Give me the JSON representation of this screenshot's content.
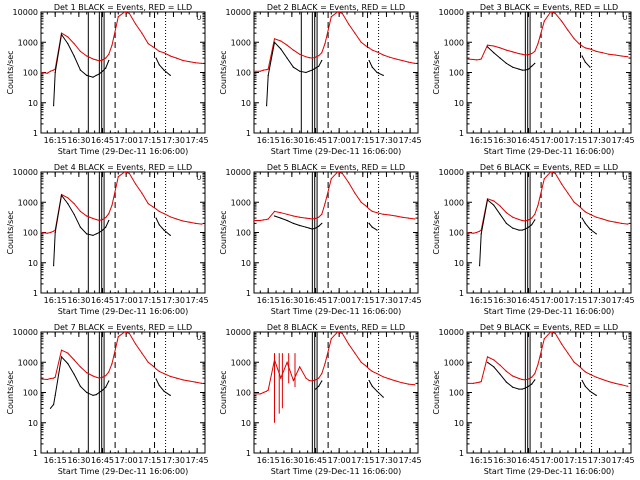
{
  "chart_data": {
    "type": "line",
    "layout": "3x3 grid of log-scale time series panels",
    "title_template": "Det {n} BLACK = Events, RED = LLD",
    "legend": {
      "black": "Events",
      "red": "LLD"
    },
    "ylabel": "Counts/sec",
    "ylim": [
      1,
      10000
    ],
    "yscale": "log",
    "y_ticks": [
      "1",
      "10",
      "100",
      "1000",
      "10000"
    ],
    "xlabel": "Start Time (29-Dec-11 16:06:00)",
    "x_unit": "minutes after 16:06:00",
    "xlim": [
      0,
      104
    ],
    "x_ticks": [
      {
        "t": 9,
        "label": "16:15"
      },
      {
        "t": 24,
        "label": "16:30"
      },
      {
        "t": 39,
        "label": "16:45"
      },
      {
        "t": 54,
        "label": "17:00"
      },
      {
        "t": 69,
        "label": "17:15"
      },
      {
        "t": 84,
        "label": "17:30"
      },
      {
        "t": 99,
        "label": "17:45"
      }
    ],
    "panel_corner_marker": "∪",
    "series_points_t": [
      0,
      4,
      6,
      8,
      9,
      13,
      17,
      21,
      25,
      29,
      33,
      35,
      37,
      39,
      41,
      43,
      45,
      49,
      53,
      56,
      60,
      64,
      68,
      71,
      73,
      75,
      78,
      82,
      86,
      90,
      94,
      98,
      102
    ],
    "panels": [
      {
        "det": "1",
        "verticals": [
          {
            "t": 30,
            "style": "solid"
          },
          {
            "t": 37,
            "style": "solid"
          },
          {
            "t": 38.5,
            "style": "solid"
          },
          {
            "t": 40,
            "style": "solid"
          },
          {
            "t": 47,
            "style": "dashed"
          },
          {
            "t": 72,
            "style": "dashed"
          },
          {
            "t": 79,
            "style": "dotted"
          }
        ],
        "black": [
          null,
          null,
          null,
          8,
          100,
          1800,
          900,
          350,
          120,
          80,
          70,
          80,
          90,
          110,
          140,
          250,
          null,
          null,
          null,
          null,
          null,
          null,
          null,
          null,
          300,
          180,
          120,
          80,
          null,
          null,
          null,
          null,
          null
        ],
        "red": [
          100,
          95,
          110,
          120,
          130,
          2000,
          1500,
          900,
          500,
          350,
          280,
          260,
          240,
          260,
          300,
          400,
          800,
          7000,
          10000,
          9000,
          4000,
          2000,
          900,
          700,
          600,
          500,
          450,
          350,
          300,
          250,
          230,
          210,
          200
        ]
      },
      {
        "det": "2",
        "verticals": [
          {
            "t": 30,
            "style": "solid"
          },
          {
            "t": 37,
            "style": "solid"
          },
          {
            "t": 38.5,
            "style": "solid"
          },
          {
            "t": 40,
            "style": "solid"
          },
          {
            "t": 47,
            "style": "dashed"
          },
          {
            "t": 72,
            "style": "dashed"
          },
          {
            "t": 79,
            "style": "dotted"
          }
        ],
        "black": [
          null,
          null,
          null,
          8,
          80,
          1000,
          600,
          300,
          150,
          110,
          100,
          110,
          120,
          140,
          160,
          250,
          null,
          null,
          null,
          null,
          null,
          null,
          null,
          null,
          250,
          150,
          100,
          80,
          null,
          null,
          null,
          null,
          null
        ],
        "red": [
          110,
          110,
          120,
          125,
          130,
          1300,
          1100,
          800,
          550,
          400,
          330,
          310,
          300,
          320,
          360,
          450,
          900,
          7000,
          10000,
          9000,
          4000,
          2000,
          1000,
          750,
          650,
          550,
          480,
          380,
          320,
          280,
          250,
          220,
          200
        ]
      },
      {
        "det": "3",
        "verticals": [
          {
            "t": 37,
            "style": "solid"
          },
          {
            "t": 38.5,
            "style": "solid"
          },
          {
            "t": 40,
            "style": "solid"
          },
          {
            "t": 47,
            "style": "dashed"
          },
          {
            "t": 72,
            "style": "dashed"
          },
          {
            "t": 79,
            "style": "dotted"
          }
        ],
        "black": [
          null,
          null,
          null,
          null,
          null,
          700,
          450,
          300,
          200,
          150,
          130,
          120,
          120,
          130,
          160,
          200,
          null,
          null,
          null,
          null,
          null,
          null,
          null,
          null,
          350,
          220,
          150,
          null,
          null,
          null,
          null,
          null,
          null
        ],
        "red": [
          280,
          270,
          260,
          270,
          280,
          800,
          750,
          650,
          550,
          480,
          420,
          400,
          380,
          390,
          420,
          500,
          900,
          5000,
          10000,
          9000,
          5000,
          2500,
          1300,
          900,
          750,
          650,
          600,
          500,
          450,
          400,
          380,
          350,
          330
        ]
      },
      {
        "det": "4",
        "verticals": [
          {
            "t": 30,
            "style": "solid"
          },
          {
            "t": 37,
            "style": "solid"
          },
          {
            "t": 38.5,
            "style": "solid"
          },
          {
            "t": 40,
            "style": "solid"
          },
          {
            "t": 47,
            "style": "dashed"
          },
          {
            "t": 72,
            "style": "dashed"
          },
          {
            "t": 79,
            "style": "dotted"
          }
        ],
        "black": [
          null,
          null,
          null,
          8,
          100,
          1700,
          900,
          400,
          150,
          90,
          80,
          90,
          100,
          120,
          150,
          250,
          null,
          null,
          null,
          null,
          null,
          null,
          null,
          null,
          300,
          180,
          120,
          80,
          null,
          null,
          null,
          null,
          null
        ],
        "red": [
          100,
          95,
          100,
          110,
          120,
          1800,
          1400,
          900,
          500,
          350,
          290,
          270,
          250,
          270,
          310,
          420,
          800,
          7000,
          10000,
          9000,
          4000,
          2000,
          900,
          700,
          600,
          500,
          420,
          330,
          280,
          240,
          220,
          200,
          190
        ]
      },
      {
        "det": "5",
        "verticals": [
          {
            "t": 37,
            "style": "solid"
          },
          {
            "t": 38.5,
            "style": "solid"
          },
          {
            "t": 40,
            "style": "solid"
          },
          {
            "t": 47,
            "style": "dashed"
          },
          {
            "t": 72,
            "style": "dashed"
          },
          {
            "t": 79,
            "style": "dotted"
          }
        ],
        "black": [
          null,
          null,
          null,
          null,
          null,
          350,
          300,
          250,
          200,
          170,
          150,
          140,
          130,
          140,
          160,
          200,
          null,
          null,
          null,
          null,
          null,
          null,
          null,
          null,
          200,
          150,
          120,
          null,
          null,
          null,
          null,
          null,
          null
        ],
        "red": [
          250,
          250,
          260,
          270,
          280,
          500,
          450,
          400,
          350,
          320,
          300,
          290,
          280,
          290,
          320,
          400,
          900,
          6000,
          10000,
          9000,
          4500,
          2000,
          1000,
          750,
          600,
          500,
          450,
          400,
          380,
          350,
          320,
          300,
          280
        ]
      },
      {
        "det": "6",
        "verticals": [
          {
            "t": 37,
            "style": "solid"
          },
          {
            "t": 38.5,
            "style": "solid"
          },
          {
            "t": 40,
            "style": "solid"
          },
          {
            "t": 47,
            "style": "dashed"
          },
          {
            "t": 72,
            "style": "dashed"
          },
          {
            "t": 79,
            "style": "dotted"
          }
        ],
        "black": [
          null,
          null,
          null,
          8,
          90,
          1200,
          800,
          400,
          200,
          140,
          120,
          120,
          130,
          150,
          180,
          260,
          null,
          null,
          null,
          null,
          null,
          null,
          null,
          null,
          300,
          200,
          130,
          90,
          null,
          null,
          null,
          null,
          null
        ],
        "red": [
          100,
          95,
          100,
          110,
          120,
          1300,
          1100,
          750,
          450,
          320,
          270,
          250,
          240,
          260,
          300,
          400,
          800,
          6000,
          10000,
          9000,
          4000,
          2000,
          1000,
          750,
          600,
          480,
          400,
          320,
          280,
          240,
          220,
          200,
          190
        ]
      },
      {
        "det": "7",
        "verticals": [
          {
            "t": 30,
            "style": "solid"
          },
          {
            "t": 37,
            "style": "solid"
          },
          {
            "t": 38.5,
            "style": "solid"
          },
          {
            "t": 40,
            "style": "solid"
          },
          {
            "t": 47,
            "style": "dashed"
          },
          {
            "t": 72,
            "style": "dashed"
          },
          {
            "t": 79,
            "style": "dotted"
          }
        ],
        "black": [
          null,
          null,
          30,
          40,
          80,
          1500,
          900,
          400,
          160,
          100,
          80,
          85,
          100,
          120,
          150,
          240,
          null,
          null,
          null,
          null,
          null,
          null,
          null,
          null,
          280,
          170,
          110,
          80,
          null,
          null,
          null,
          null,
          null
        ],
        "red": [
          280,
          270,
          290,
          300,
          320,
          2500,
          2000,
          1200,
          700,
          450,
          350,
          320,
          300,
          320,
          360,
          480,
          900,
          7000,
          10000,
          9000,
          4000,
          2000,
          1000,
          750,
          600,
          500,
          420,
          340,
          300,
          260,
          240,
          220,
          200
        ]
      },
      {
        "det": "8",
        "verticals": [
          {
            "t": 37,
            "style": "solid"
          },
          {
            "t": 38.5,
            "style": "solid"
          },
          {
            "t": 40,
            "style": "solid"
          },
          {
            "t": 47,
            "style": "dashed"
          },
          {
            "t": 72,
            "style": "dashed"
          },
          {
            "t": 79,
            "style": "dotted"
          }
        ],
        "black": [
          null,
          null,
          null,
          null,
          null,
          null,
          null,
          null,
          null,
          null,
          null,
          null,
          null,
          130,
          160,
          240,
          null,
          null,
          null,
          null,
          null,
          null,
          null,
          null,
          250,
          160,
          110,
          70,
          null,
          null,
          null,
          null,
          null
        ],
        "red": [
          90,
          90,
          100,
          110,
          120,
          1200,
          300,
          1000,
          250,
          700,
          300,
          250,
          240,
          260,
          300,
          420,
          900,
          6000,
          10000,
          9000,
          4000,
          2000,
          1000,
          750,
          600,
          500,
          420,
          330,
          280,
          240,
          210,
          190,
          180
        ],
        "red_spikes": [
          {
            "t": 13,
            "to": 10
          },
          {
            "t": 16,
            "to": 20
          },
          {
            "t": 18,
            "to": 30
          },
          {
            "t": 22,
            "to": 200
          },
          {
            "t": 26,
            "to": 150
          }
        ]
      },
      {
        "det": "9",
        "verticals": [
          {
            "t": 37,
            "style": "solid"
          },
          {
            "t": 38.5,
            "style": "solid"
          },
          {
            "t": 40,
            "style": "solid"
          },
          {
            "t": 47,
            "style": "dashed"
          },
          {
            "t": 72,
            "style": "dashed"
          },
          {
            "t": 79,
            "style": "dotted"
          }
        ],
        "black": [
          null,
          null,
          null,
          null,
          null,
          1000,
          700,
          400,
          220,
          150,
          130,
          130,
          140,
          160,
          190,
          260,
          null,
          null,
          null,
          null,
          null,
          null,
          null,
          null,
          250,
          160,
          110,
          80,
          null,
          null,
          null,
          null,
          null
        ],
        "red": [
          200,
          200,
          210,
          220,
          230,
          1500,
          1200,
          800,
          500,
          350,
          290,
          270,
          260,
          280,
          320,
          420,
          850,
          6000,
          10000,
          9000,
          4000,
          2000,
          1000,
          750,
          600,
          480,
          400,
          320,
          270,
          230,
          200,
          180,
          160
        ]
      }
    ]
  }
}
